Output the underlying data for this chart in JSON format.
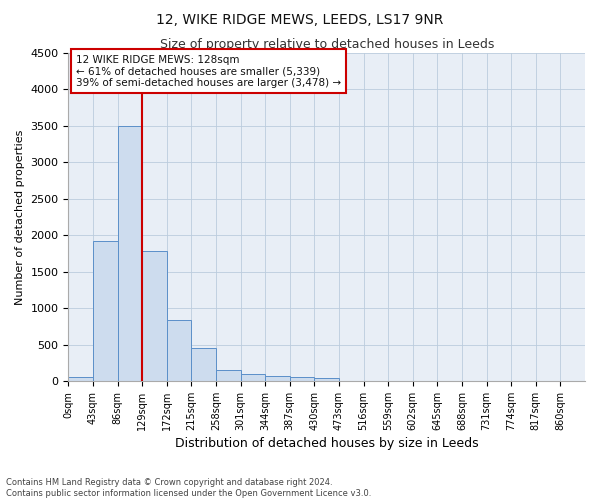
{
  "title": "12, WIKE RIDGE MEWS, LEEDS, LS17 9NR",
  "subtitle": "Size of property relative to detached houses in Leeds",
  "xlabel": "Distribution of detached houses by size in Leeds",
  "ylabel": "Number of detached properties",
  "bar_color": "#cddcee",
  "bar_edge_color": "#5b8fc9",
  "grid_color": "#bbccdd",
  "background_color": "#ffffff",
  "plot_background_color": "#e8eef6",
  "bin_labels": [
    "0sqm",
    "43sqm",
    "86sqm",
    "129sqm",
    "172sqm",
    "215sqm",
    "258sqm",
    "301sqm",
    "344sqm",
    "387sqm",
    "430sqm",
    "473sqm",
    "516sqm",
    "559sqm",
    "602sqm",
    "645sqm",
    "688sqm",
    "731sqm",
    "774sqm",
    "817sqm",
    "860sqm"
  ],
  "bar_heights": [
    50,
    1920,
    3500,
    1780,
    840,
    455,
    155,
    100,
    65,
    55,
    35,
    0,
    0,
    0,
    0,
    0,
    0,
    0,
    0,
    0,
    0
  ],
  "ylim": [
    0,
    4500
  ],
  "yticks": [
    0,
    500,
    1000,
    1500,
    2000,
    2500,
    3000,
    3500,
    4000,
    4500
  ],
  "property_line_x": 3.0,
  "annotation_box_line1": "12 WIKE RIDGE MEWS: 128sqm",
  "annotation_box_line2": "← 61% of detached houses are smaller (5,339)",
  "annotation_box_line3": "39% of semi-detached houses are larger (3,478) →",
  "annotation_box_color": "#cc0000",
  "footer_line1": "Contains HM Land Registry data © Crown copyright and database right 2024.",
  "footer_line2": "Contains public sector information licensed under the Open Government Licence v3.0."
}
